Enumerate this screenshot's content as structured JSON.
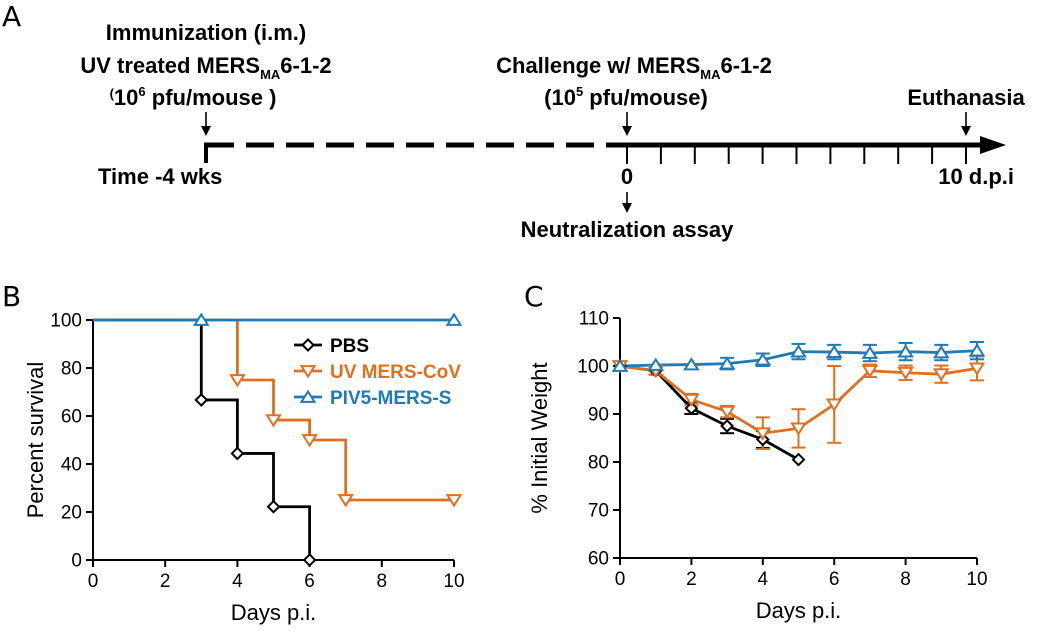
{
  "panel_labels": {
    "a": "A",
    "b": "B",
    "c": "C"
  },
  "timeline": {
    "immunization": {
      "line1": "Immunization (i.m.)",
      "line2_main": "UV treated MERS",
      "line2_sub": "MA",
      "line2_tail": "6-1-2",
      "dose_open": "(",
      "dose_base": "10",
      "dose_exp": "6",
      "dose_tail": " pfu/mouse )"
    },
    "challenge": {
      "line1_main": "Challenge w/ MERS",
      "line1_sub": "MA",
      "line1_tail": "6-1-2",
      "dose_open": "(",
      "dose_base": "10",
      "dose_exp": "5",
      "dose_tail": " pfu/mouse)"
    },
    "euthanasia": "Euthanasia",
    "time_start": "Time -4 wks",
    "day0": "0",
    "day_end": "10 d.p.i",
    "neutralization": "Neutralization assay"
  },
  "colors": {
    "PBS": "#000000",
    "UV MERS-CoV": "#E07020",
    "PIV5-MERS-S": "#1F7AB5"
  },
  "chart_data": [
    {
      "type": "line",
      "step": true,
      "xlabel": "Days p.i.",
      "ylabel": "Percent survival",
      "xlim": [
        0,
        10
      ],
      "ylim": [
        0,
        100
      ],
      "xticks": [
        0,
        2,
        4,
        6,
        8,
        10
      ],
      "yticks": [
        0,
        20,
        40,
        60,
        80,
        100
      ],
      "legend_position": "top-right",
      "series": [
        {
          "name": "PBS",
          "marker": "diamond",
          "x": [
            0,
            3,
            4,
            5,
            6
          ],
          "y": [
            100,
            66.7,
            44.4,
            22.2,
            0
          ]
        },
        {
          "name": "UV MERS-CoV",
          "marker": "triangle-down",
          "x": [
            0,
            4,
            5,
            6,
            7,
            10
          ],
          "y": [
            100,
            75,
            58.3,
            50,
            25,
            25
          ]
        },
        {
          "name": "PIV5-MERS-S",
          "marker": "triangle-up",
          "x": [
            0,
            3,
            10
          ],
          "y": [
            100,
            100,
            100
          ]
        }
      ]
    },
    {
      "type": "line",
      "xlabel": "Days p.i.",
      "ylabel": "% Initial Weight",
      "xlim": [
        0,
        10
      ],
      "ylim": [
        60,
        110
      ],
      "xticks": [
        0,
        2,
        4,
        6,
        8,
        10
      ],
      "yticks": [
        60,
        70,
        80,
        90,
        100,
        110
      ],
      "series": [
        {
          "name": "PBS",
          "marker": "diamond",
          "x": [
            0,
            1,
            2,
            3,
            4,
            5
          ],
          "y": [
            100,
            99,
            91.2,
            87.5,
            84.7,
            80.5
          ],
          "err": [
            0.5,
            0.8,
            1.2,
            1.5,
            1.8,
            0.5
          ]
        },
        {
          "name": "UV MERS-CoV",
          "marker": "triangle-down",
          "x": [
            0,
            1,
            2,
            3,
            4,
            5,
            6,
            7,
            8,
            9,
            10
          ],
          "y": [
            100,
            99,
            93,
            90.5,
            86,
            87,
            92,
            99,
            98.6,
            98.3,
            99.5
          ],
          "err": [
            0.5,
            0.8,
            1.2,
            1.2,
            3.3,
            4,
            8,
            1.3,
            1.5,
            1.8,
            2.5
          ]
        },
        {
          "name": "PIV5-MERS-S",
          "marker": "triangle-up",
          "x": [
            0,
            1,
            2,
            3,
            4,
            5,
            6,
            7,
            8,
            9,
            10
          ],
          "y": [
            100,
            100.2,
            100.3,
            100.5,
            101.3,
            103,
            102.9,
            102.7,
            103,
            102.8,
            103.2
          ],
          "err": [
            0.4,
            0.5,
            0.6,
            1.2,
            1.3,
            1.6,
            1.5,
            1.7,
            1.8,
            1.6,
            1.8
          ]
        }
      ]
    }
  ]
}
